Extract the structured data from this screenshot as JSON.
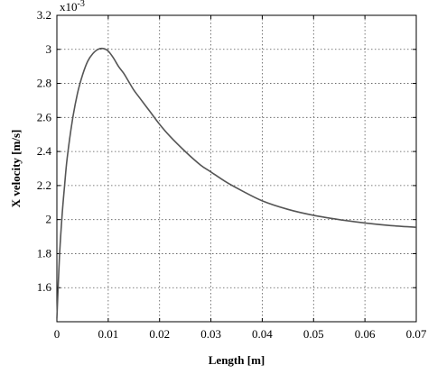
{
  "chart_data": {
    "type": "line",
    "title": "",
    "xlabel": "Length [m]",
    "ylabel": "X velocity [m/s]",
    "y_scale_label": "x10",
    "y_scale_exponent": "-3",
    "xlim": [
      0,
      0.07
    ],
    "ylim": [
      1.4,
      3.2
    ],
    "grid": true,
    "x_ticks": [
      0,
      0.01,
      0.02,
      0.03,
      0.04,
      0.05,
      0.06,
      0.07
    ],
    "x_tick_labels": [
      "0",
      "0.01",
      "0.02",
      "0.03",
      "0.04",
      "0.05",
      "0.06",
      "0.07"
    ],
    "y_ticks": [
      1.6,
      1.8,
      2.0,
      2.2,
      2.4,
      2.6,
      2.8,
      3.0,
      3.2
    ],
    "y_tick_labels": [
      "1.6",
      "1.8",
      "2",
      "2.2",
      "2.4",
      "2.6",
      "2.8",
      "3",
      "3.2"
    ],
    "series": [
      {
        "x": [
          0,
          0.0005,
          0.001,
          0.0015,
          0.002,
          0.003,
          0.004,
          0.005,
          0.006,
          0.007,
          0.008,
          0.009,
          0.01,
          0.011,
          0.012,
          0.013,
          0.014,
          0.015,
          0.016,
          0.018,
          0.02,
          0.022,
          0.025,
          0.028,
          0.03,
          0.033,
          0.036,
          0.04,
          0.045,
          0.05,
          0.055,
          0.06,
          0.065,
          0.07
        ],
        "y": [
          1.42,
          1.78,
          2.02,
          2.2,
          2.36,
          2.58,
          2.74,
          2.85,
          2.93,
          2.975,
          3.0,
          3.005,
          2.99,
          2.95,
          2.9,
          2.86,
          2.81,
          2.76,
          2.72,
          2.64,
          2.56,
          2.49,
          2.4,
          2.32,
          2.28,
          2.22,
          2.17,
          2.11,
          2.06,
          2.025,
          2.0,
          1.98,
          1.965,
          1.955
        ],
        "color": "#555555"
      }
    ]
  }
}
